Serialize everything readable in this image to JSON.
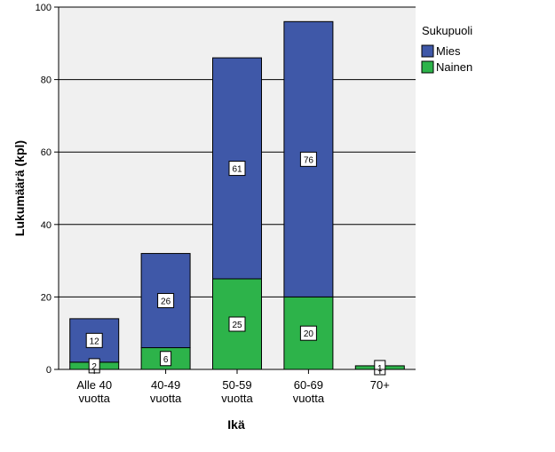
{
  "chart_data": {
    "type": "bar",
    "stacked": true,
    "title": "",
    "xlabel": "Ikä",
    "ylabel": "Lukumäärä (kpl)",
    "ylim": [
      0,
      100
    ],
    "yticks": [
      0,
      20,
      40,
      60,
      80,
      100
    ],
    "grid": true,
    "categories": [
      [
        "Alle 40",
        "vuotta"
      ],
      [
        "40-49",
        "vuotta"
      ],
      [
        "50-59",
        "vuotta"
      ],
      [
        "60-69",
        "vuotta"
      ],
      [
        "70+"
      ]
    ],
    "series": [
      {
        "name": "Nainen",
        "color": "#2db34a",
        "values": [
          2,
          6,
          25,
          20,
          1
        ],
        "labels": [
          "2",
          "6",
          "25",
          "20",
          "1"
        ]
      },
      {
        "name": "Mies",
        "color": "#3f58a8",
        "values": [
          12,
          26,
          61,
          76,
          0
        ],
        "labels": [
          "12",
          "26",
          "61",
          "76",
          ""
        ]
      }
    ],
    "legend": {
      "title": "Sukupuoli",
      "position": "right",
      "entries": [
        {
          "name": "Mies",
          "color": "#3f58a8"
        },
        {
          "name": "Nainen",
          "color": "#2db34a"
        }
      ]
    }
  }
}
